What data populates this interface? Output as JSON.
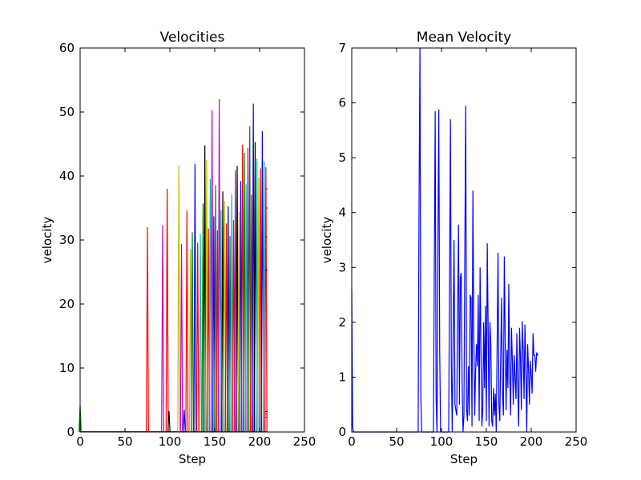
{
  "chart_data": [
    {
      "type": "line",
      "title": "Velocities",
      "xlabel": "Step",
      "ylabel": "velocity",
      "xlim": [
        0,
        250
      ],
      "ylim": [
        0,
        60
      ],
      "xticks": [
        "0",
        "50",
        "100",
        "150",
        "200",
        "250"
      ],
      "yticks": [
        "0",
        "10",
        "20",
        "30",
        "40",
        "50",
        "60"
      ],
      "grid": false,
      "legend": "none",
      "series_colors": [
        "#ff0000",
        "#00bfbf",
        "#bf00bf",
        "#bfbf00",
        "#0000ff",
        "#008000",
        "#000000"
      ],
      "spikes": [
        {
          "x": 0,
          "y": 4.2,
          "color": "#008000"
        },
        {
          "x": 75,
          "y": 32,
          "color": "#ff0000"
        },
        {
          "x": 92,
          "y": 32.3,
          "color": "#bf00bf"
        },
        {
          "x": 97,
          "y": 38,
          "color": "#ff0000"
        },
        {
          "x": 99,
          "y": 3.3,
          "color": "#000000"
        },
        {
          "x": 110,
          "y": 41.7,
          "color": "#bfbf00"
        },
        {
          "x": 113,
          "y": 29.4,
          "color": "#bf00bf"
        },
        {
          "x": 116,
          "y": 3.5,
          "color": "#0000ff"
        },
        {
          "x": 119,
          "y": 34.6,
          "color": "#ff0000"
        },
        {
          "x": 123,
          "y": 28.6,
          "color": "#bfbf00"
        },
        {
          "x": 125,
          "y": 31.2,
          "color": "#008000"
        },
        {
          "x": 128,
          "y": 41.9,
          "color": "#0000ff"
        },
        {
          "x": 131,
          "y": 29.6,
          "color": "#ff0000"
        },
        {
          "x": 134,
          "y": 31,
          "color": "#00bfbf"
        },
        {
          "x": 137,
          "y": 35.7,
          "color": "#008000"
        },
        {
          "x": 139,
          "y": 44.8,
          "color": "#000000"
        },
        {
          "x": 141,
          "y": 42.5,
          "color": "#bfbf00"
        },
        {
          "x": 143,
          "y": 31.8,
          "color": "#ff0000"
        },
        {
          "x": 145,
          "y": 39.5,
          "color": "#00bfbf"
        },
        {
          "x": 147,
          "y": 50.3,
          "color": "#bf00bf"
        },
        {
          "x": 149,
          "y": 33.7,
          "color": "#0000ff"
        },
        {
          "x": 151,
          "y": 38.6,
          "color": "#008000"
        },
        {
          "x": 153,
          "y": 31.5,
          "color": "#ff0000"
        },
        {
          "x": 155,
          "y": 52,
          "color": "#bf00bf"
        },
        {
          "x": 157,
          "y": 34.7,
          "color": "#00bfbf"
        },
        {
          "x": 159,
          "y": 37.6,
          "color": "#000000"
        },
        {
          "x": 161,
          "y": 36.1,
          "color": "#bfbf00"
        },
        {
          "x": 163,
          "y": 32.6,
          "color": "#ff0000"
        },
        {
          "x": 165,
          "y": 35.3,
          "color": "#0000ff"
        },
        {
          "x": 167,
          "y": 30.6,
          "color": "#008000"
        },
        {
          "x": 169,
          "y": 37.2,
          "color": "#00bfbf"
        },
        {
          "x": 171,
          "y": 33.1,
          "color": "#ff0000"
        },
        {
          "x": 173,
          "y": 40.9,
          "color": "#bf00bf"
        },
        {
          "x": 175,
          "y": 41.6,
          "color": "#000000"
        },
        {
          "x": 177,
          "y": 34.4,
          "color": "#bfbf00"
        },
        {
          "x": 179,
          "y": 39.2,
          "color": "#0000ff"
        },
        {
          "x": 181,
          "y": 44.9,
          "color": "#ff0000"
        },
        {
          "x": 183,
          "y": 43.6,
          "color": "#008000"
        },
        {
          "x": 185,
          "y": 38.7,
          "color": "#00bfbf"
        },
        {
          "x": 187,
          "y": 44.4,
          "color": "#bf00bf"
        },
        {
          "x": 189,
          "y": 47.8,
          "color": "#008000"
        },
        {
          "x": 191,
          "y": 37.1,
          "color": "#ff0000"
        },
        {
          "x": 193,
          "y": 51.3,
          "color": "#0000ff"
        },
        {
          "x": 195,
          "y": 45.3,
          "color": "#000000"
        },
        {
          "x": 197,
          "y": 42.7,
          "color": "#00bfbf"
        },
        {
          "x": 199,
          "y": 39.8,
          "color": "#bfbf00"
        },
        {
          "x": 201,
          "y": 41.2,
          "color": "#ff0000"
        },
        {
          "x": 203,
          "y": 47,
          "color": "#0000ff"
        },
        {
          "x": 205,
          "y": 42.3,
          "color": "#00bfbf"
        },
        {
          "x": 207,
          "y": 41.4,
          "color": "#ff0000"
        }
      ],
      "baseline_segments": [
        {
          "x": 208,
          "y": 38,
          "color": "#ff0000"
        },
        {
          "x": 208,
          "y": 35,
          "color": "#ff0000"
        },
        {
          "x": 208,
          "y": 30.5,
          "color": "#008000"
        },
        {
          "x": 208,
          "y": 29,
          "color": "#bfbf00"
        },
        {
          "x": 208,
          "y": 25.3,
          "color": "#0000ff"
        },
        {
          "x": 208,
          "y": 3.2,
          "color": "#000000"
        },
        {
          "x": 208,
          "y": 2.8,
          "color": "#ff0000"
        },
        {
          "x": 208,
          "y": 2.3,
          "color": "#bf00bf"
        }
      ]
    },
    {
      "type": "line",
      "title": "Mean Velocity",
      "xlabel": "Step",
      "ylabel": "velocity",
      "xlim": [
        0,
        250
      ],
      "ylim": [
        0,
        7
      ],
      "xticks": [
        "0",
        "50",
        "100",
        "150",
        "200",
        "250"
      ],
      "yticks": [
        "0",
        "1",
        "2",
        "3",
        "4",
        "5",
        "6",
        "7"
      ],
      "grid": false,
      "legend": "none",
      "color": "#0000ff",
      "x": [
        0,
        1,
        2,
        74,
        75,
        76,
        77,
        78,
        91,
        92,
        93,
        94,
        95,
        96,
        97,
        98,
        99,
        108,
        109,
        110,
        111,
        112,
        113,
        114,
        115,
        117,
        118,
        119,
        120,
        121,
        122,
        123,
        124,
        125,
        126,
        127,
        128,
        129,
        130,
        131,
        132,
        133,
        134,
        135,
        136,
        137,
        138,
        139,
        140,
        141,
        142,
        143,
        144,
        145,
        146,
        147,
        148,
        149,
        150,
        151,
        152,
        153,
        154,
        155,
        156,
        157,
        158,
        159,
        160,
        161,
        162,
        163,
        164,
        165,
        166,
        167,
        168,
        169,
        170,
        171,
        172,
        173,
        174,
        175,
        176,
        177,
        178,
        179,
        180,
        181,
        182,
        183,
        184,
        185,
        186,
        187,
        188,
        189,
        190,
        191,
        192,
        193,
        194,
        195,
        196,
        197,
        198,
        199,
        200,
        201,
        202,
        203,
        204,
        205,
        206,
        207,
        208
      ],
      "y": [
        2.6,
        0.1,
        0,
        0,
        4.2,
        7.0,
        0.6,
        0,
        0,
        3.0,
        5.85,
        0.6,
        0,
        3.3,
        5.88,
        1.5,
        0,
        0,
        2.8,
        5.7,
        1.2,
        0,
        1.9,
        3.5,
        0.5,
        0.3,
        2.2,
        3.78,
        0.5,
        2.8,
        2.9,
        0.9,
        0,
        0.3,
        3.3,
        5.95,
        0.4,
        0.2,
        1.2,
        0.3,
        2.5,
        2.45,
        0.1,
        4.4,
        1.8,
        0.3,
        1.1,
        1.6,
        1.2,
        2.5,
        0.2,
        3.0,
        1.5,
        0.1,
        0.4,
        2.0,
        0.8,
        2.3,
        0.2,
        3.44,
        1.9,
        0.1,
        2.0,
        1.6,
        0.2,
        0.1,
        0.8,
        0.3,
        0.7,
        0.0,
        1.6,
        3.27,
        0.5,
        0.2,
        1.4,
        2.45,
        0.7,
        0.3,
        3.2,
        1.7,
        0.4,
        1.5,
        0.8,
        2.7,
        1.1,
        0.3,
        1.9,
        1.3,
        0.5,
        1.4,
        1.0,
        0.6,
        1.8,
        0.8,
        0.1,
        1.9,
        1.35,
        0.4,
        2.02,
        1.5,
        0.6,
        1.96,
        1.2,
        0.0,
        1.6,
        1.15,
        0.5,
        1.3,
        1.05,
        0.7,
        1.8,
        1.4,
        1.4,
        1.1,
        1.45,
        1.4,
        1.4
      ]
    }
  ]
}
